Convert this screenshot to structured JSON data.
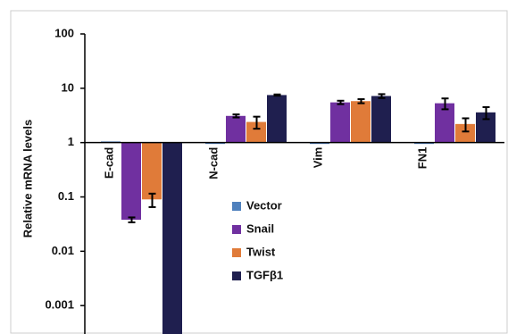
{
  "chart_data": {
    "type": "bar",
    "log_scale": true,
    "y_label": "Relative mRNA levels",
    "categories": [
      "E-cad",
      "N-cad",
      "Vim",
      "FN1"
    ],
    "series": [
      {
        "name": "Vector",
        "color": "#4f81bd",
        "values": [
          1.05,
          1,
          1,
          0.95
        ]
      },
      {
        "name": "Snail",
        "color": "#7030a0",
        "values": [
          0.038,
          3.1,
          5.5,
          5.3
        ],
        "errors": [
          0.004,
          0.2,
          0.4,
          1.2
        ]
      },
      {
        "name": "Twist",
        "color": "#e07b39",
        "values": [
          0.09,
          2.4,
          5.8,
          2.2
        ],
        "errors": [
          0.025,
          0.6,
          0.5,
          0.6
        ]
      },
      {
        "name": "TGFβ1",
        "color": "#1f1f4f",
        "values": [
          0.0003,
          7.5,
          7.2,
          3.6
        ],
        "errors": [
          0,
          0.2,
          0.6,
          0.9
        ]
      }
    ],
    "ylim": [
      0.0003,
      100
    ],
    "yticks": [
      100,
      10,
      1,
      0.1,
      0.01,
      0.001
    ]
  }
}
